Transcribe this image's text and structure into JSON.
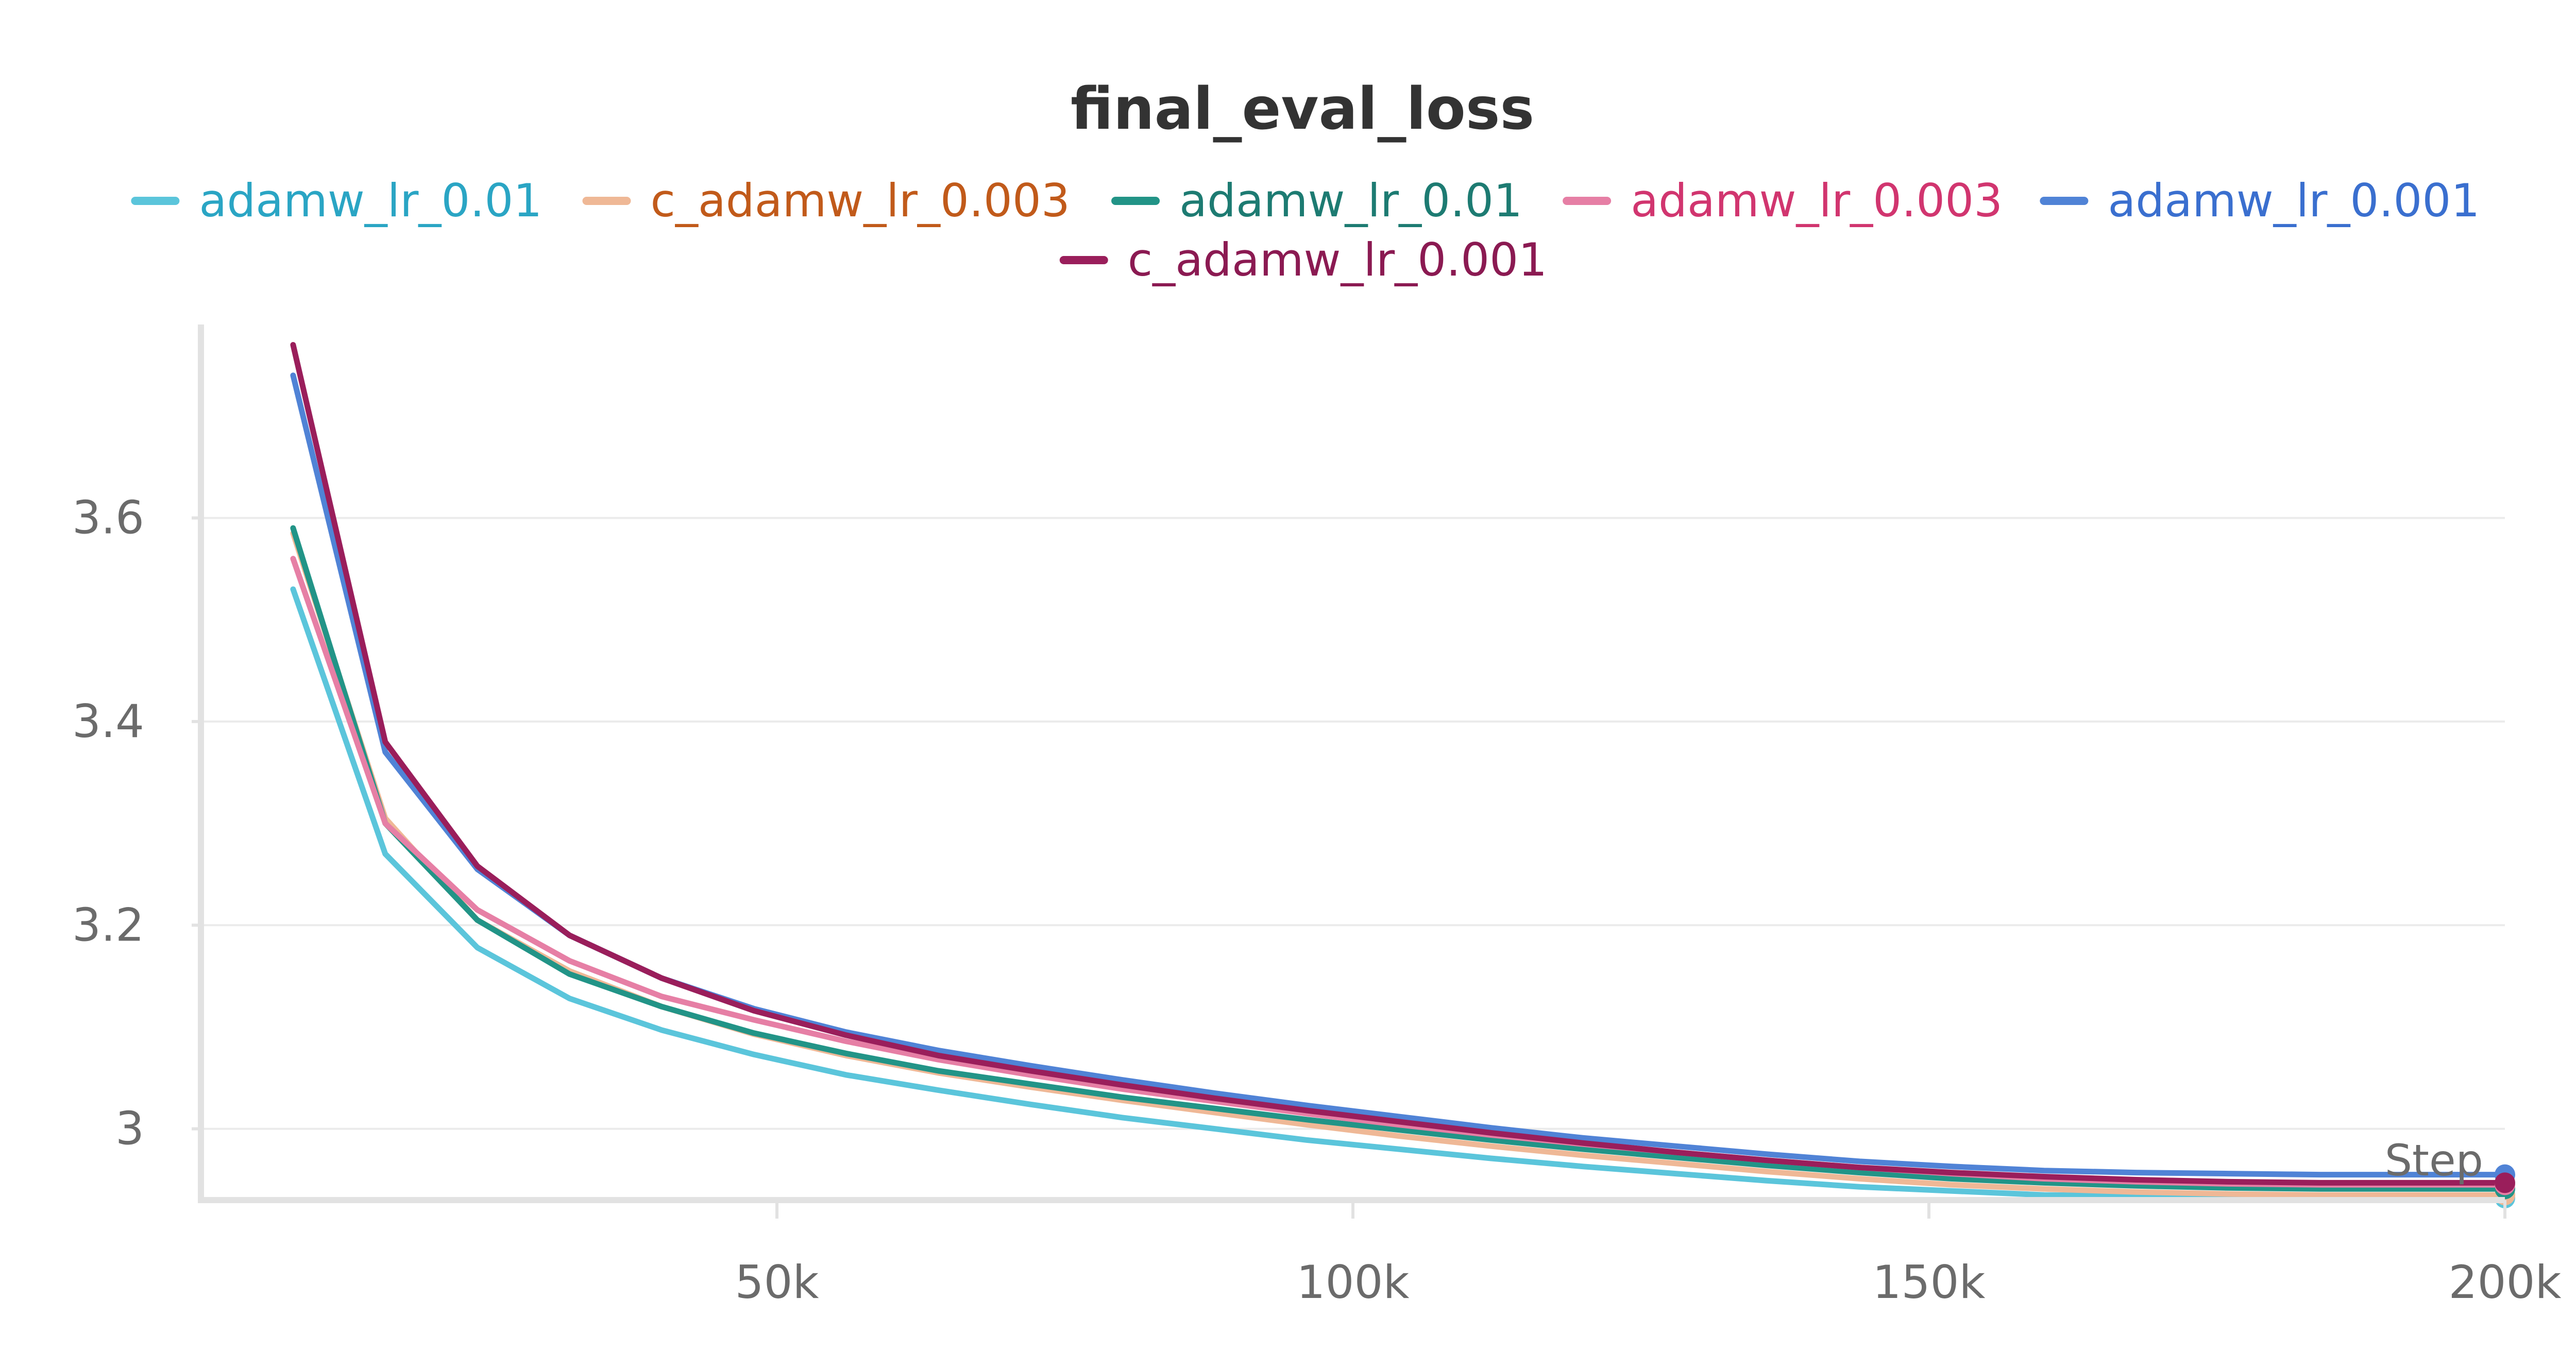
{
  "chart_data": {
    "type": "line",
    "title": "final_eval_loss",
    "xlabel": "Step",
    "ylabel": "",
    "xlim": [
      0,
      200000
    ],
    "ylim": [
      2.93,
      3.79
    ],
    "x_ticks": [
      {
        "value": 50000,
        "label": "50k"
      },
      {
        "value": 100000,
        "label": "100k"
      },
      {
        "value": 150000,
        "label": "150k"
      },
      {
        "value": 200000,
        "label": "200k"
      }
    ],
    "y_ticks": [
      {
        "value": 3.0,
        "label": "3"
      },
      {
        "value": 3.2,
        "label": "3.2"
      },
      {
        "value": 3.4,
        "label": "3.4"
      },
      {
        "value": 3.6,
        "label": "3.6"
      }
    ],
    "grid": true,
    "legend_position": "top-center",
    "x": [
      8000,
      16000,
      24000,
      32000,
      40000,
      48000,
      56000,
      64000,
      72000,
      80000,
      88000,
      96000,
      104000,
      112000,
      120000,
      128000,
      136000,
      144000,
      152000,
      160000,
      168000,
      176000,
      184000,
      192000,
      200000
    ],
    "series": [
      {
        "name": "adamw_lr_0.01",
        "color": "#5bc5db",
        "text_color": "#2aa5c4",
        "values": [
          3.53,
          3.27,
          3.178,
          3.128,
          3.097,
          3.073,
          3.053,
          3.038,
          3.024,
          3.011,
          3.0,
          2.989,
          2.98,
          2.971,
          2.963,
          2.956,
          2.949,
          2.943,
          2.939,
          2.935,
          2.934,
          2.933,
          2.932,
          2.932,
          2.932
        ]
      },
      {
        "name": "c_adamw_lr_0.003",
        "color": "#efb896",
        "text_color": "#c15a1a",
        "values": [
          3.585,
          3.305,
          3.205,
          3.155,
          3.12,
          3.093,
          3.072,
          3.055,
          3.041,
          3.028,
          3.016,
          3.004,
          2.993,
          2.983,
          2.974,
          2.966,
          2.958,
          2.951,
          2.945,
          2.941,
          2.938,
          2.936,
          2.935,
          2.935,
          2.935
        ]
      },
      {
        "name": "adamw_lr_0.01",
        "color": "#229487",
        "text_color": "#1d7b72",
        "values": [
          3.59,
          3.3,
          3.205,
          3.152,
          3.12,
          3.094,
          3.074,
          3.057,
          3.044,
          3.031,
          3.02,
          3.009,
          2.999,
          2.989,
          2.98,
          2.972,
          2.964,
          2.957,
          2.951,
          2.947,
          2.944,
          2.942,
          2.941,
          2.941,
          2.941
        ]
      },
      {
        "name": "adamw_lr_0.003",
        "color": "#e67fa5",
        "text_color": "#d1356f",
        "values": [
          3.56,
          3.3,
          3.215,
          3.165,
          3.13,
          3.107,
          3.086,
          3.068,
          3.053,
          3.039,
          3.027,
          3.015,
          3.004,
          2.994,
          2.985,
          2.977,
          2.969,
          2.962,
          2.956,
          2.951,
          2.948,
          2.946,
          2.945,
          2.945,
          2.945
        ]
      },
      {
        "name": "adamw_lr_0.001",
        "color": "#5083d6",
        "text_color": "#3a6fcf",
        "values": [
          3.74,
          3.37,
          3.255,
          3.19,
          3.148,
          3.118,
          3.095,
          3.077,
          3.062,
          3.048,
          3.035,
          3.023,
          3.012,
          3.001,
          2.991,
          2.983,
          2.975,
          2.968,
          2.963,
          2.959,
          2.957,
          2.956,
          2.955,
          2.955,
          2.955
        ]
      },
      {
        "name": "c_adamw_lr_0.001",
        "color": "#9a1e5b",
        "text_color": "#8b1a52",
        "values": [
          3.77,
          3.38,
          3.258,
          3.19,
          3.148,
          3.116,
          3.092,
          3.072,
          3.057,
          3.043,
          3.03,
          3.018,
          3.007,
          2.996,
          2.986,
          2.977,
          2.969,
          2.962,
          2.957,
          2.953,
          2.95,
          2.948,
          2.947,
          2.947,
          2.947
        ]
      }
    ]
  }
}
